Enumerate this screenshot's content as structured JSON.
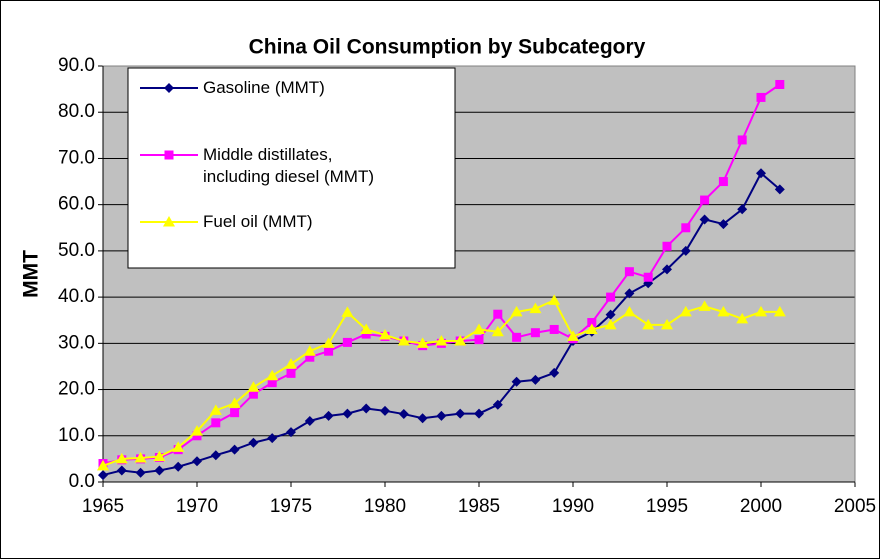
{
  "chart_data": {
    "type": "line",
    "title": "China Oil Consumption by Subcategory",
    "y_label": "MMT",
    "x": [
      1965,
      1966,
      1967,
      1968,
      1969,
      1970,
      1971,
      1972,
      1973,
      1974,
      1975,
      1976,
      1977,
      1978,
      1979,
      1980,
      1981,
      1982,
      1983,
      1984,
      1985,
      1986,
      1987,
      1988,
      1989,
      1990,
      1991,
      1992,
      1993,
      1994,
      1995,
      1996,
      1997,
      1998,
      1999,
      2000,
      2001
    ],
    "series": [
      {
        "name": "Gasoline (MMT)",
        "color": "#000080",
        "marker": "diamond",
        "values": [
          1.5,
          2.5,
          2.0,
          2.5,
          3.3,
          4.5,
          5.8,
          7.0,
          8.5,
          9.5,
          10.8,
          13.2,
          14.3,
          14.8,
          15.9,
          15.4,
          14.7,
          13.8,
          14.3,
          14.8,
          14.8,
          16.7,
          21.7,
          22.1,
          23.6,
          30.5,
          32.5,
          36.2,
          40.8,
          43.0,
          46.0,
          50.0,
          56.8,
          55.8,
          59.0,
          66.8,
          63.3
        ]
      },
      {
        "name": "Middle distillates, including diesel (MMT)",
        "color": "#FF00FF",
        "marker": "square",
        "values": [
          4.0,
          4.8,
          5.0,
          5.3,
          7.0,
          10.0,
          12.8,
          15.0,
          19.0,
          21.5,
          23.5,
          27.0,
          28.3,
          30.2,
          32.0,
          31.5,
          30.5,
          29.5,
          30.0,
          30.5,
          30.8,
          36.3,
          31.3,
          32.3,
          33.0,
          31.0,
          34.5,
          40.0,
          45.5,
          44.3,
          51.0,
          55.0,
          61.0,
          65.0,
          74.0,
          83.2,
          86.0
        ]
      },
      {
        "name": "Fuel oil (MMT)",
        "color": "#FFFF00",
        "marker": "triangle",
        "values": [
          3.5,
          5.0,
          5.2,
          5.5,
          7.5,
          11.0,
          15.5,
          17.0,
          20.5,
          23.0,
          25.5,
          28.3,
          30.0,
          36.7,
          33.0,
          31.8,
          30.5,
          30.0,
          30.5,
          30.5,
          33.0,
          32.5,
          36.8,
          37.5,
          39.3,
          31.5,
          33.0,
          34.0,
          36.8,
          34.0,
          34.0,
          36.8,
          38.0,
          36.8,
          35.3,
          36.8,
          36.8
        ]
      }
    ],
    "xlim": [
      1965,
      2005
    ],
    "xticks": [
      1965,
      1970,
      1975,
      1980,
      1985,
      1990,
      1995,
      2000,
      2005
    ],
    "ylim": [
      0,
      90
    ],
    "yticks": [
      {
        "value": 0,
        "label": "0.0"
      },
      {
        "value": 10,
        "label": "10.0"
      },
      {
        "value": 20,
        "label": "20.0"
      },
      {
        "value": 30,
        "label": "30.0"
      },
      {
        "value": 40,
        "label": "40.0"
      },
      {
        "value": 50,
        "label": "50.0"
      },
      {
        "value": 60,
        "label": "60.0"
      },
      {
        "value": 70,
        "label": "70.0"
      },
      {
        "value": 80,
        "label": "80.0"
      },
      {
        "value": 90,
        "label": "90.0"
      }
    ],
    "grid": true,
    "legend": "upper left",
    "plot_background": "#C0C0C0"
  }
}
